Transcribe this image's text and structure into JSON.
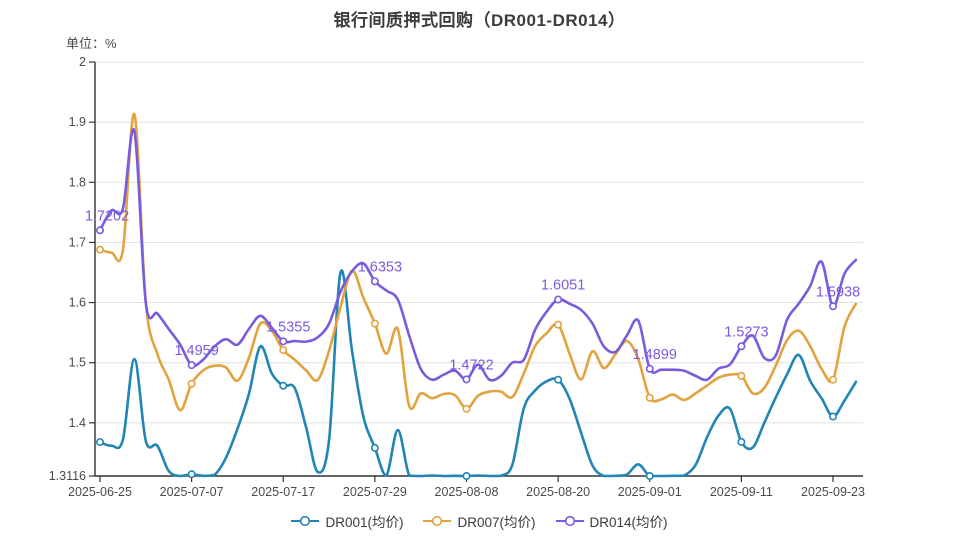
{
  "title": "银行间质押式回购（DR001-DR014）",
  "unit_label": "单位：%",
  "chart_data": {
    "type": "line",
    "title": "银行间质押式回购（DR001-DR014）",
    "ylabel": "单位：%",
    "ylim": [
      1.3116,
      2.0
    ],
    "grid": "horizontal",
    "legend_position": "bottom",
    "y_tick_labels": [
      "2",
      "1.9",
      "1.8",
      "1.7",
      "1.6",
      "1.5",
      "1.4",
      "1.3116"
    ],
    "y_tick_values": [
      2.0,
      1.9,
      1.8,
      1.7,
      1.6,
      1.5,
      1.4,
      1.3116
    ],
    "x_tick_labels": [
      "2025-06-25",
      "2025-07-07",
      "2025-07-17",
      "2025-07-29",
      "2025-08-08",
      "2025-08-20",
      "2025-09-01",
      "2025-09-11",
      "2025-09-23"
    ],
    "points_per_tick": 8,
    "marker_indices": [
      0,
      8,
      16,
      24,
      32,
      40,
      48,
      56,
      64
    ],
    "series": [
      {
        "name": "DR001(均价)",
        "color": "#2185B5",
        "values": [
          1.368,
          1.362,
          1.372,
          1.506,
          1.37,
          1.362,
          1.32,
          1.3116,
          1.3145,
          1.312,
          1.3135,
          1.342,
          1.39,
          1.448,
          1.527,
          1.482,
          1.4617,
          1.458,
          1.392,
          1.3185,
          1.372,
          1.65,
          1.52,
          1.41,
          1.3583,
          1.3125,
          1.388,
          1.3125,
          1.3116,
          1.3125,
          1.3116,
          1.312,
          1.3116,
          1.3125,
          1.3116,
          1.312,
          1.33,
          1.424,
          1.454,
          1.469,
          1.4717,
          1.44,
          1.384,
          1.329,
          1.3116,
          1.312,
          1.314,
          1.331,
          1.3116,
          1.3116,
          1.312,
          1.3125,
          1.33,
          1.376,
          1.412,
          1.4235,
          1.3683,
          1.359,
          1.4,
          1.442,
          1.481,
          1.513,
          1.47,
          1.441,
          1.4105,
          1.437,
          1.468
        ],
        "point_labels": []
      },
      {
        "name": "DR007(均价)",
        "color": "#E2A33E",
        "values": [
          1.688,
          1.683,
          1.687,
          1.913,
          1.6,
          1.515,
          1.472,
          1.421,
          1.465,
          1.487,
          1.495,
          1.492,
          1.47,
          1.508,
          1.565,
          1.553,
          1.521,
          1.505,
          1.487,
          1.471,
          1.52,
          1.592,
          1.653,
          1.608,
          1.565,
          1.515,
          1.556,
          1.428,
          1.449,
          1.441,
          1.448,
          1.446,
          1.4233,
          1.445,
          1.452,
          1.452,
          1.443,
          1.482,
          1.528,
          1.549,
          1.5633,
          1.515,
          1.472,
          1.519,
          1.491,
          1.514,
          1.536,
          1.506,
          1.4417,
          1.439,
          1.447,
          1.438,
          1.449,
          1.462,
          1.475,
          1.48,
          1.478,
          1.449,
          1.458,
          1.495,
          1.538,
          1.553,
          1.528,
          1.49,
          1.4717,
          1.56,
          1.598
        ],
        "point_labels": []
      },
      {
        "name": "DR014(均价)",
        "color": "#7A5BE0",
        "values": [
          1.7202,
          1.753,
          1.756,
          1.885,
          1.6,
          1.582,
          1.556,
          1.53,
          1.4959,
          1.505,
          1.527,
          1.539,
          1.53,
          1.556,
          1.578,
          1.558,
          1.5355,
          1.536,
          1.535,
          1.542,
          1.565,
          1.618,
          1.652,
          1.665,
          1.6353,
          1.62,
          1.605,
          1.545,
          1.49,
          1.4717,
          1.48,
          1.4867,
          1.4722,
          1.4967,
          1.4717,
          1.478,
          1.5,
          1.505,
          1.555,
          1.585,
          1.6051,
          1.598,
          1.588,
          1.565,
          1.527,
          1.518,
          1.545,
          1.57,
          1.4899,
          1.4883,
          1.4883,
          1.4867,
          1.478,
          1.4717,
          1.49,
          1.497,
          1.5273,
          1.545,
          1.508,
          1.512,
          1.572,
          1.598,
          1.627,
          1.668,
          1.5938,
          1.648,
          1.671
        ],
        "point_labels": [
          {
            "index": 0,
            "text": "1.7202"
          },
          {
            "index": 8,
            "text": "1.4959"
          },
          {
            "index": 16,
            "text": "1.5355"
          },
          {
            "index": 24,
            "text": "1.6353"
          },
          {
            "index": 32,
            "text": "1.4722"
          },
          {
            "index": 40,
            "text": "1.6051"
          },
          {
            "index": 48,
            "text": "1.4899"
          },
          {
            "index": 56,
            "text": "1.5273"
          },
          {
            "index": 64,
            "text": "1.5938"
          }
        ]
      }
    ],
    "legend": [
      "DR001(均价)",
      "DR007(均价)",
      "DR014(均价)"
    ]
  },
  "colors": {
    "dr001": "#2185B5",
    "dr007": "#E2A33E",
    "dr014": "#7A5BE0",
    "grid": "#e0e0e0",
    "axis": "#333333",
    "tick_text": "#4a4a4a"
  }
}
